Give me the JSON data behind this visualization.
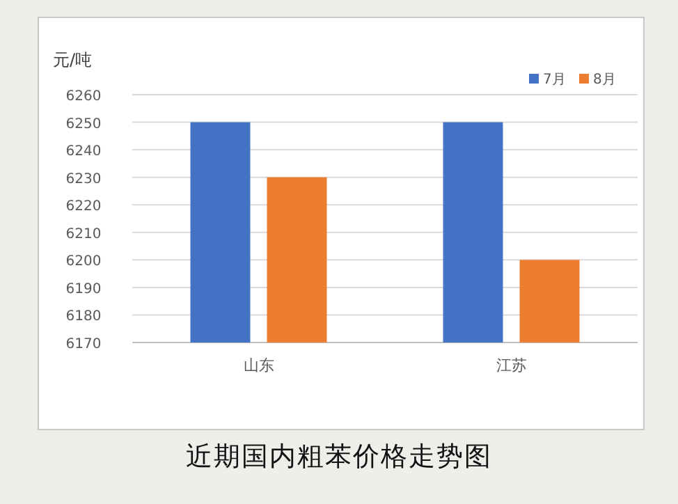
{
  "chart_data": {
    "type": "bar",
    "title": "近期国内粗苯价格走势图",
    "ylabel": "元/吨",
    "categories": [
      "山东",
      "江苏"
    ],
    "series": [
      {
        "name": "7月",
        "color": "#4472c4",
        "values": [
          6250,
          6250
        ]
      },
      {
        "name": "8月",
        "color": "#ed7d31",
        "values": [
          6230,
          6200
        ]
      }
    ],
    "ylim": [
      6170,
      6260
    ],
    "yticks": [
      6170,
      6180,
      6190,
      6200,
      6210,
      6220,
      6230,
      6240,
      6250,
      6260
    ],
    "grid": "y",
    "legend": "top right"
  }
}
